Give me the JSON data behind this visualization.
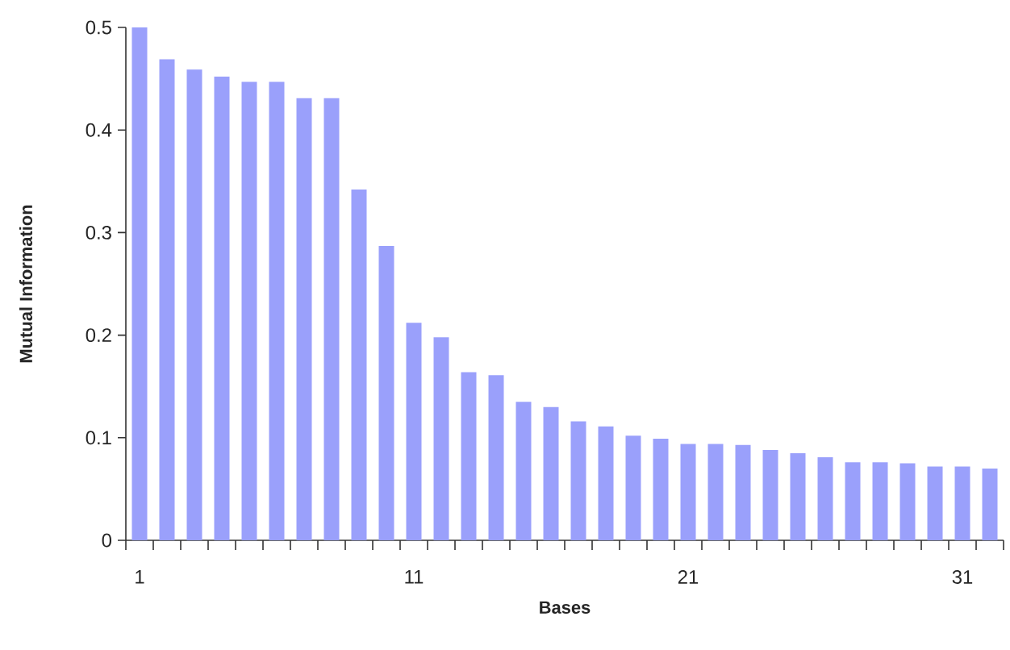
{
  "chart_data": {
    "type": "bar",
    "xlabel": "Bases",
    "ylabel": "Mutual Information",
    "color": "#9aa0fb",
    "categories": [
      "1",
      null,
      null,
      null,
      null,
      null,
      null,
      null,
      null,
      null,
      "11",
      null,
      null,
      null,
      null,
      null,
      null,
      null,
      null,
      null,
      "21",
      null,
      null,
      null,
      null,
      null,
      null,
      null,
      null,
      null,
      "31",
      null
    ],
    "values": [
      0.5,
      0.469,
      0.459,
      0.452,
      0.447,
      0.447,
      0.431,
      0.431,
      0.342,
      0.287,
      0.212,
      0.198,
      0.164,
      0.161,
      0.135,
      0.13,
      0.116,
      0.111,
      0.102,
      0.099,
      0.094,
      0.094,
      0.093,
      0.088,
      0.085,
      0.081,
      0.076,
      0.076,
      0.075,
      0.072,
      0.072,
      0.07
    ],
    "ylim": [
      0,
      0.5
    ],
    "yticks": [
      0,
      0.1,
      0.2,
      0.3,
      0.4,
      0.5
    ]
  }
}
